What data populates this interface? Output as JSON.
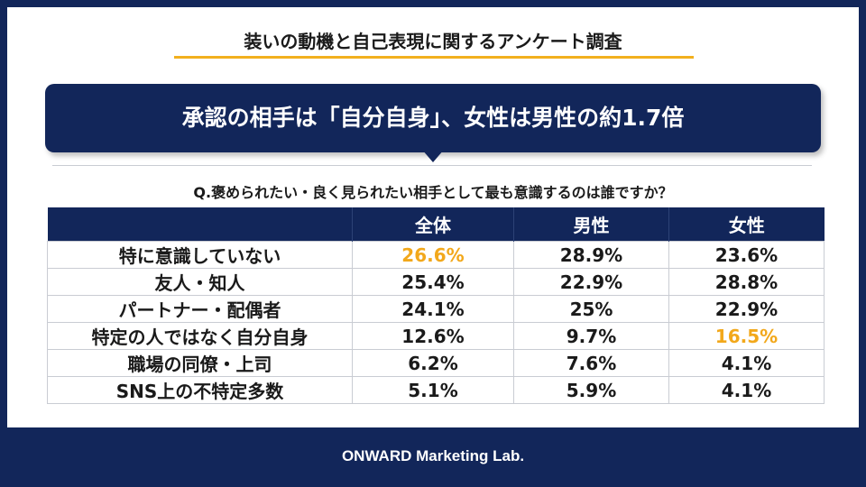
{
  "header": {
    "title": "装いの動機と自己表現に関するアンケート調査",
    "headline": "承認の相手は「自分自身」、女性は男性の約1.7倍",
    "question": "Q.褒められたい・良く見られたい相手として最も意識するのは誰ですか？"
  },
  "colors": {
    "navy": "#12265a",
    "accent": "#f2b01e",
    "highlight_text": "#f2a81b"
  },
  "chart_data": {
    "type": "table",
    "columns": [
      "",
      "全体",
      "男性",
      "女性"
    ],
    "rows": [
      {
        "label": "特に意識していない",
        "values": [
          "26.6%",
          "28.9%",
          "23.6%"
        ],
        "highlight": [
          0
        ]
      },
      {
        "label": "友人・知人",
        "values": [
          "25.4%",
          "22.9%",
          "28.8%"
        ],
        "highlight": []
      },
      {
        "label": "パートナー・配偶者",
        "values": [
          "24.1%",
          "25%",
          "22.9%"
        ],
        "highlight": []
      },
      {
        "label": "特定の人ではなく自分自身",
        "values": [
          "12.6%",
          "9.7%",
          "16.5%"
        ],
        "highlight": [
          2
        ]
      },
      {
        "label": "職場の同僚・上司",
        "values": [
          "6.2%",
          "7.6%",
          "4.1%"
        ],
        "highlight": []
      },
      {
        "label": "SNS上の不特定多数",
        "values": [
          "5.1%",
          "5.9%",
          "4.1%"
        ],
        "highlight": []
      }
    ]
  },
  "footer": {
    "brand": "ONWARD Marketing Lab."
  }
}
